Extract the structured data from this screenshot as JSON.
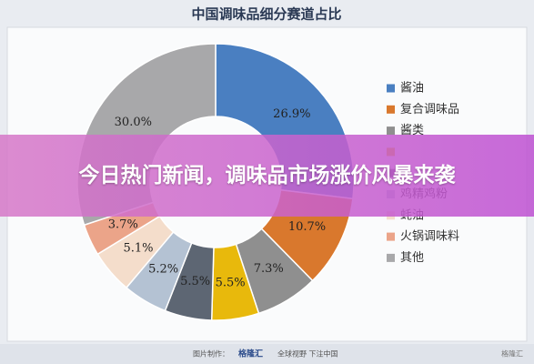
{
  "chart_data": {
    "type": "pie",
    "title": "中国调味品细分赛道占比",
    "categories": [
      "酱油",
      "复合调味品",
      "酱类",
      null,
      null,
      "鸡精鸡粉",
      "蚝油",
      "火锅调味料",
      "其他"
    ],
    "values": [
      26.9,
      10.7,
      7.3,
      5.5,
      5.5,
      5.2,
      5.1,
      3.7,
      30.0
    ],
    "value_labels": [
      "26.9%",
      "10.7%",
      "7.3%",
      "5.5%",
      "5.5%",
      "5.2%",
      "5.1%",
      "3.7%",
      "30.0%"
    ],
    "colors": [
      "#4a7fc1",
      "#d9782d",
      "#8f8f8f",
      "#e8b90c",
      "#5d6673",
      "#b4c2d3",
      "#f4ddcb",
      "#eba489",
      "#a8a8aa"
    ],
    "legend": "right"
  },
  "banner": {
    "headline": "今日热门新闻，调味品市场涨价风暴来袭"
  },
  "footer": {
    "maker": "图片制作：",
    "brand": "格隆汇",
    "slogan": "全球视野 下注中国",
    "watermark": "格隆汇"
  }
}
